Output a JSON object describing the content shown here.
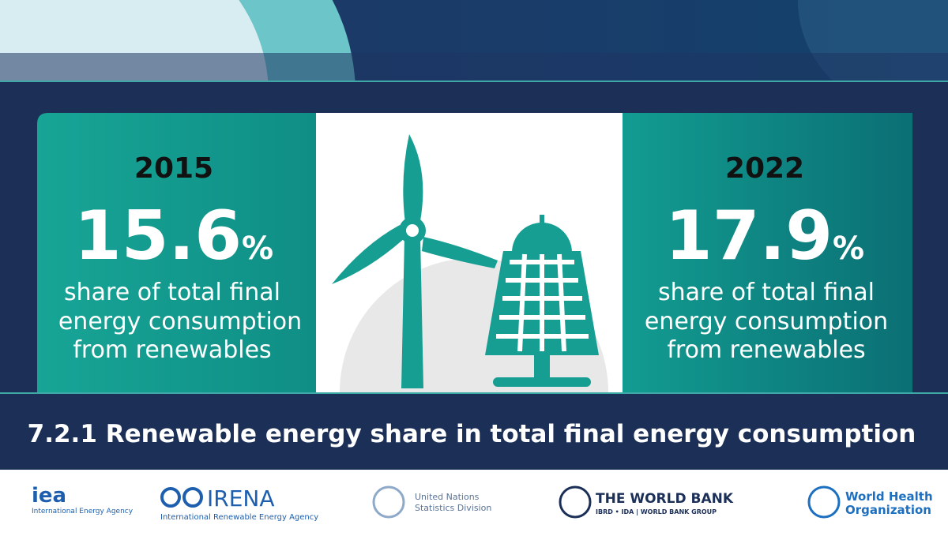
{
  "panels": [
    {
      "year": "2015",
      "value": "15.6",
      "unit": "%",
      "lines": [
        "share of total final",
        "energy consumption",
        "from renewables"
      ]
    },
    {
      "year": "2022",
      "value": "17.9",
      "unit": "%",
      "lines": [
        "share of total final",
        "energy consumption",
        "from renewables"
      ]
    }
  ],
  "title": "7.2.1 Renewable energy share in total final energy consumption",
  "logos": [
    {
      "name": "iea",
      "sub": "International Energy Agency"
    },
    {
      "name": "IRENA",
      "sub": "International Renewable Energy Agency"
    },
    {
      "name": "United Nations",
      "sub": "Statistics Division"
    },
    {
      "name": "THE WORLD BANK",
      "sub": "IBRD • IDA | WORLD BANK GROUP"
    },
    {
      "name": "World Health",
      "sub": "Organization"
    }
  ]
}
